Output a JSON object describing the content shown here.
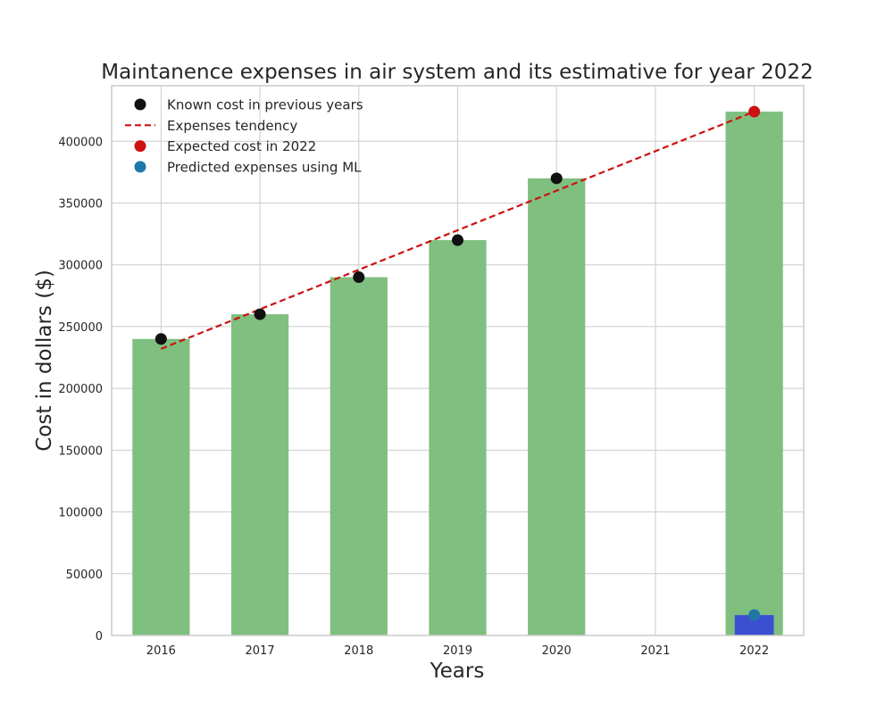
{
  "chart_data": {
    "type": "bar",
    "title": "Maintanence expenses in air system and its estimative for year 2022",
    "xlabel": "Years",
    "ylabel": "Cost in dollars ($)",
    "categories": [
      "2016",
      "2017",
      "2018",
      "2019",
      "2020",
      "2021",
      "2022"
    ],
    "ylim": [
      0,
      445000
    ],
    "y_ticks": [
      0,
      50000,
      100000,
      150000,
      200000,
      250000,
      300000,
      350000,
      400000
    ],
    "grid": true,
    "legend_position": "top-left",
    "bars": {
      "color": "#7fbf7f",
      "values": [
        240000,
        260000,
        290000,
        320000,
        370000,
        null,
        424000
      ]
    },
    "predicted_bar": {
      "category": "2022",
      "value": 16500,
      "color": "#3b4fd1"
    },
    "series": [
      {
        "name": "Known cost in previous years",
        "kind": "points",
        "color": "#111111",
        "points": [
          {
            "x": "2016",
            "y": 240000
          },
          {
            "x": "2017",
            "y": 260000
          },
          {
            "x": "2018",
            "y": 290000
          },
          {
            "x": "2019",
            "y": 320000
          },
          {
            "x": "2020",
            "y": 370000
          }
        ]
      },
      {
        "name": "Expenses tendency",
        "kind": "dashed-line",
        "color": "#cc1111",
        "points": [
          {
            "x": "2016",
            "y": 232000
          },
          {
            "x": "2022",
            "y": 424000
          }
        ]
      },
      {
        "name": "Expected cost in 2022",
        "kind": "points",
        "color": "#cc1111",
        "points": [
          {
            "x": "2022",
            "y": 424000
          }
        ]
      },
      {
        "name": "Predicted expenses using ML",
        "kind": "points",
        "color": "#1f77a8",
        "points": [
          {
            "x": "2022",
            "y": 16500
          }
        ]
      }
    ]
  }
}
